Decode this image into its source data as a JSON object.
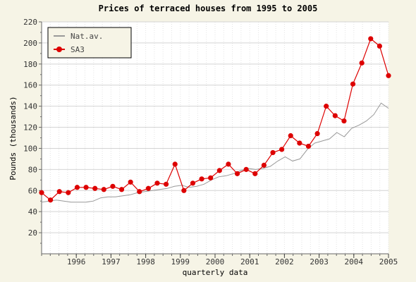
{
  "chart_data": {
    "type": "line",
    "title": "Prices of terraced houses from 1995 to 2005",
    "xlabel": "quarterly data",
    "ylabel": "Pounds (thousands)",
    "ylim": [
      0,
      220
    ],
    "y_ticks": [
      20,
      40,
      60,
      80,
      100,
      120,
      140,
      160,
      180,
      200,
      220
    ],
    "x_range_quarters": [
      1995.0,
      2005.0
    ],
    "x_tick_labels": [
      "1996",
      "1997",
      "1998",
      "1999",
      "2000",
      "2001",
      "2002",
      "2003",
      "2004",
      "2005"
    ],
    "grid": true,
    "legend_position": "top-left",
    "series": [
      {
        "name": "Nat.av.",
        "color": "#999999",
        "marker": "none",
        "values": [
          49,
          50,
          51,
          50,
          49,
          49,
          49,
          50,
          53,
          54,
          54,
          55,
          56,
          58,
          59,
          60,
          61,
          62,
          64,
          65,
          63,
          64,
          66,
          70,
          73,
          74,
          76,
          79,
          81,
          80,
          81,
          83,
          88,
          92,
          88,
          90,
          99,
          105,
          107,
          109,
          115,
          111,
          119,
          122,
          126,
          132,
          143,
          138
        ]
      },
      {
        "name": "SA3",
        "color": "#dd0000",
        "marker": "circle",
        "values": [
          58,
          51,
          59,
          58,
          63,
          63,
          62,
          61,
          64,
          61,
          68,
          59,
          62,
          67,
          66,
          85,
          60,
          67,
          71,
          72,
          79,
          85,
          76,
          80,
          76,
          84,
          96,
          99,
          112,
          105,
          102,
          114,
          140,
          131,
          126,
          161,
          181,
          204,
          197,
          169
        ]
      }
    ]
  }
}
